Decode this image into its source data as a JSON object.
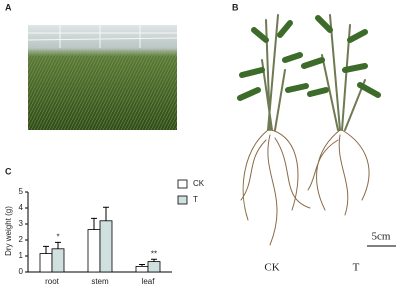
{
  "panels": {
    "a": {
      "label": "A"
    },
    "b": {
      "label": "B",
      "plants": [
        "CK",
        "T"
      ],
      "scale": "5cm"
    },
    "c": {
      "label": "C"
    }
  },
  "chart_data": {
    "type": "bar",
    "y_label": "Dry weight (g)",
    "categories": [
      "root",
      "stem",
      "leaf"
    ],
    "series": [
      {
        "name": "CK",
        "color": "#ffffff",
        "values": [
          1.15,
          2.65,
          0.35
        ],
        "errors": [
          0.45,
          0.7,
          0.12
        ]
      },
      {
        "name": "T",
        "color": "#cfe0df",
        "values": [
          1.45,
          3.2,
          0.65
        ],
        "errors": [
          0.4,
          0.85,
          0.15
        ],
        "significance": [
          "*",
          null,
          "**"
        ]
      }
    ],
    "ylim": [
      0,
      5
    ],
    "yticks": [
      0,
      1,
      2,
      3,
      4,
      5
    ],
    "legend": "upper right"
  }
}
